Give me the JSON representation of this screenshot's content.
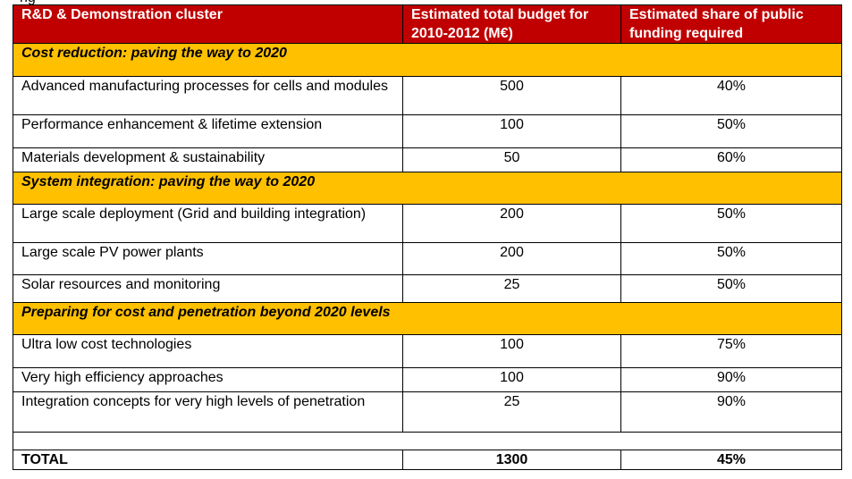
{
  "cut_text": "ng",
  "headers": [
    "R&D & Demonstration cluster",
    "Estimated total budget for 2010-2012 (M€)",
    "Estimated share of public funding required"
  ],
  "sections": [
    {
      "title": "Cost reduction: paving the way to 2020",
      "rows": [
        {
          "name": "Advanced manufacturing processes for cells and modules",
          "budget": "500",
          "share": "40%"
        },
        {
          "name": "Performance enhancement & lifetime extension",
          "budget": "100",
          "share": "50%"
        },
        {
          "name": "Materials development & sustainability",
          "budget": "50",
          "share": "60%"
        }
      ]
    },
    {
      "title": "System integration: paving the way to 2020",
      "rows": [
        {
          "name": "Large scale deployment (Grid and building integration)",
          "budget": "200",
          "share": "50%"
        },
        {
          "name": "Large scale PV power plants",
          "budget": "200",
          "share": "50%"
        },
        {
          "name": "Solar resources and monitoring",
          "budget": "25",
          "share": "50%"
        }
      ]
    },
    {
      "title": "Preparing for cost and penetration beyond 2020 levels",
      "rows": [
        {
          "name": "Ultra low cost technologies",
          "budget": "100",
          "share": "75%"
        },
        {
          "name": "Very high efficiency approaches",
          "budget": "100",
          "share": "90%"
        },
        {
          "name": "Integration concepts for very high levels of penetration",
          "budget": "25",
          "share": "90%"
        }
      ]
    }
  ],
  "total": {
    "label": "TOTAL",
    "budget": "1300",
    "share": "45%"
  }
}
